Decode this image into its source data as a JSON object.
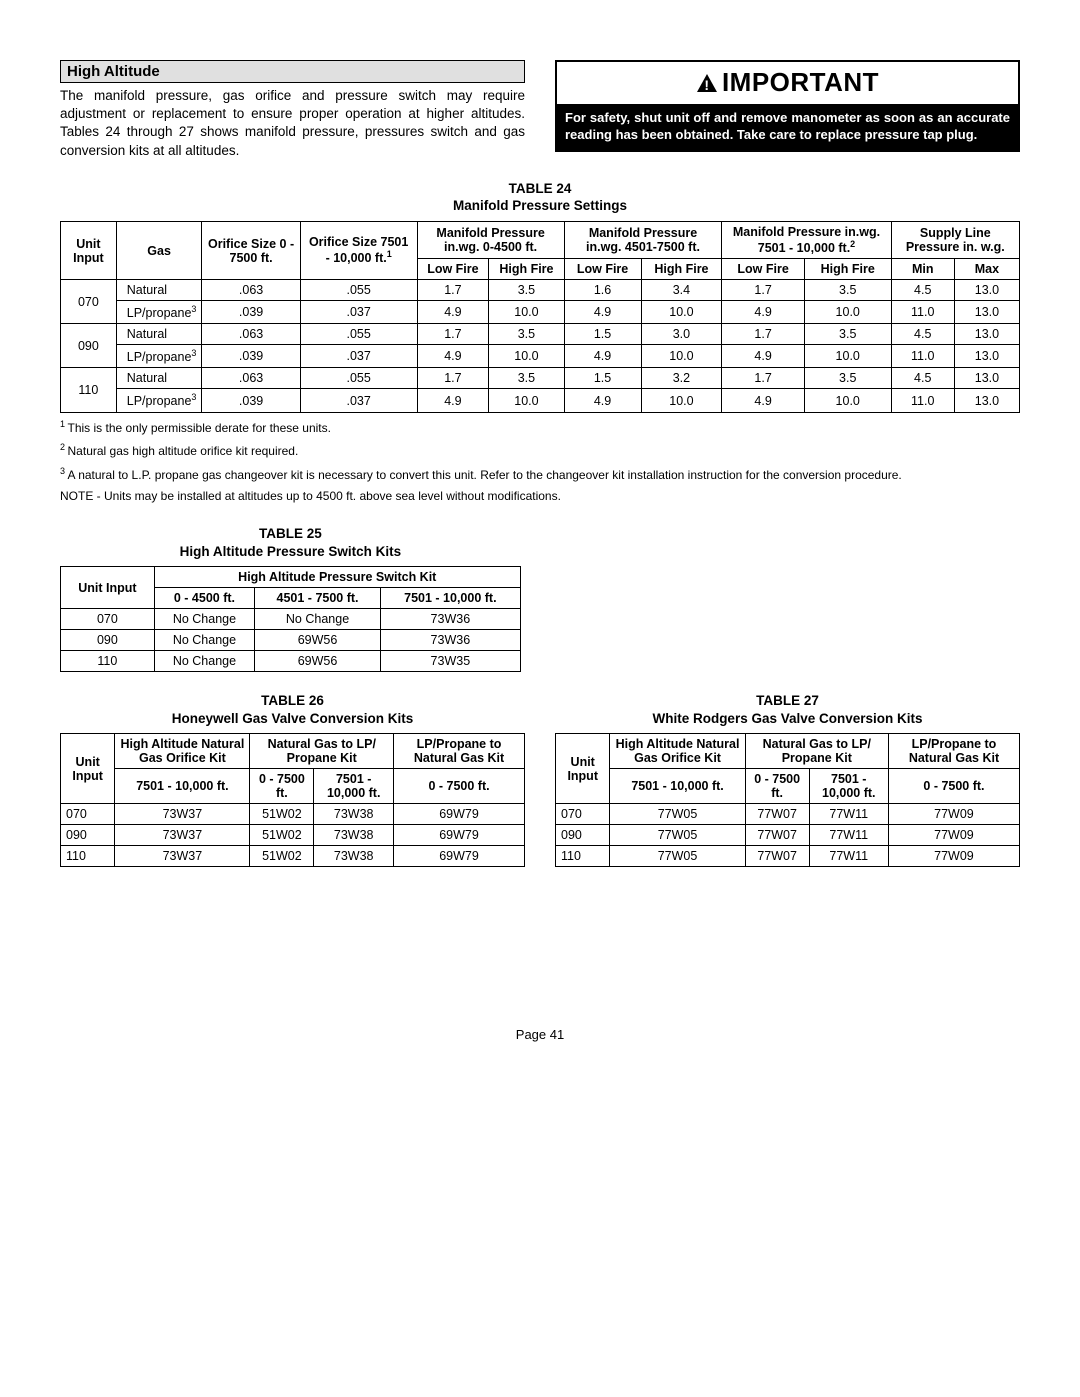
{
  "section": {
    "title": "High Altitude",
    "body": "The manifold pressure, gas orifice and pressure switch may require adjustment or replacement to ensure proper operation at higher altitudes. Tables 24 through 27 shows manifold pressure, pressures switch and gas conversion kits at all altitudes."
  },
  "important": {
    "header": "IMPORTANT",
    "body": "For safety, shut unit off and remove manometer as soon as an accurate reading has been obtained. Take care to replace pressure tap plug."
  },
  "table24": {
    "title_line1": "TABLE 24",
    "title_line2": "Manifold Pressure Settings",
    "headers": {
      "unit_input": "Unit Input",
      "gas": "Gas",
      "orifice1": "Orifice Size 0 - 7500 ft.",
      "orifice2_l1": "Orifice Size 7501 - 10,000 ft.",
      "orifice2_sup": "1",
      "mp1": "Manifold Pressure in.wg. 0-4500 ft.",
      "mp2": "Manifold Pressure in.wg. 4501-7500 ft.",
      "mp3_l": "Manifold Pressure in.wg. 7501 - 10,000 ft.",
      "mp3_sup": "2",
      "supply": "Supply Line Pressure in. w.g.",
      "low": "Low Fire",
      "high": "High Fire",
      "min": "Min",
      "max": "Max"
    },
    "rows": [
      {
        "unit": "070",
        "gas": "Natural",
        "o1": ".063",
        "o2": ".055",
        "lf1": "1.7",
        "hf1": "3.5",
        "lf2": "1.6",
        "hf2": "3.4",
        "lf3": "1.7",
        "hf3": "3.5",
        "min": "4.5",
        "max": "13.0"
      },
      {
        "gas": "LP/propane",
        "sup": "3",
        "o1": ".039",
        "o2": ".037",
        "lf1": "4.9",
        "hf1": "10.0",
        "lf2": "4.9",
        "hf2": "10.0",
        "lf3": "4.9",
        "hf3": "10.0",
        "min": "11.0",
        "max": "13.0"
      },
      {
        "unit": "090",
        "gas": "Natural",
        "o1": ".063",
        "o2": ".055",
        "lf1": "1.7",
        "hf1": "3.5",
        "lf2": "1.5",
        "hf2": "3.0",
        "lf3": "1.7",
        "hf3": "3.5",
        "min": "4.5",
        "max": "13.0"
      },
      {
        "gas": "LP/propane",
        "sup": "3",
        "o1": ".039",
        "o2": ".037",
        "lf1": "4.9",
        "hf1": "10.0",
        "lf2": "4.9",
        "hf2": "10.0",
        "lf3": "4.9",
        "hf3": "10.0",
        "min": "11.0",
        "max": "13.0"
      },
      {
        "unit": "110",
        "gas": "Natural",
        "o1": ".063",
        "o2": ".055",
        "lf1": "1.7",
        "hf1": "3.5",
        "lf2": "1.5",
        "hf2": "3.2",
        "lf3": "1.7",
        "hf3": "3.5",
        "min": "4.5",
        "max": "13.0"
      },
      {
        "gas": "LP/propane",
        "sup": "3",
        "o1": ".039",
        "o2": ".037",
        "lf1": "4.9",
        "hf1": "10.0",
        "lf2": "4.9",
        "hf2": "10.0",
        "lf3": "4.9",
        "hf3": "10.0",
        "min": "11.0",
        "max": "13.0"
      }
    ]
  },
  "footnotes": {
    "f1": "This is the only permissible derate for these units.",
    "f2": "Natural gas high altitude orifice kit required.",
    "f3": "A natural to L.P. propane gas changeover kit is necessary to convert this unit. Refer to the changeover kit installation instruction for the conversion procedure.",
    "note": "NOTE - Units may be installed at altitudes up to 4500 ft. above sea level without modifications."
  },
  "table25": {
    "title_line1": "TABLE 25",
    "title_line2": "High Altitude Pressure Switch Kits",
    "headers": {
      "unit_input": "Unit Input",
      "main": "High Altitude Pressure Switch Kit",
      "c1": "0 - 4500 ft.",
      "c2": "4501 - 7500 ft.",
      "c3": "7501 - 10,000 ft."
    },
    "rows": [
      {
        "unit": "070",
        "a": "No Change",
        "b": "No Change",
        "c": "73W36"
      },
      {
        "unit": "090",
        "a": "No Change",
        "b": "69W56",
        "c": "73W36"
      },
      {
        "unit": "110",
        "a": "No Change",
        "b": "69W56",
        "c": "73W35"
      }
    ]
  },
  "table26": {
    "title_line1": "TABLE 26",
    "title_line2": "Honeywell Gas Valve Conversion Kits",
    "headers": {
      "unit_input": "Unit Input",
      "c1": "High Altitude Natural Gas Orifice Kit",
      "c2": "Natural Gas to LP/ Propane Kit",
      "c3": "LP/Propane to Natural Gas Kit",
      "s1": "7501 - 10,000 ft.",
      "s2": "0 - 7500 ft.",
      "s3": "7501 - 10,000 ft.",
      "s4": "0 - 7500 ft."
    },
    "rows": [
      {
        "unit": "070",
        "a": "73W37",
        "b": "51W02",
        "c": "73W38",
        "d": "69W79"
      },
      {
        "unit": "090",
        "a": "73W37",
        "b": "51W02",
        "c": "73W38",
        "d": "69W79"
      },
      {
        "unit": "110",
        "a": "73W37",
        "b": "51W02",
        "c": "73W38",
        "d": "69W79"
      }
    ]
  },
  "table27": {
    "title_line1": "TABLE 27",
    "title_line2": "White Rodgers Gas Valve Conversion Kits",
    "headers": {
      "unit_input": "Unit Input",
      "c1": "High Altitude Natural Gas Orifice Kit",
      "c2": "Natural Gas to LP/ Propane Kit",
      "c3": "LP/Propane to Natural Gas Kit",
      "s1": "7501 - 10,000 ft.",
      "s2": "0 - 7500 ft.",
      "s3": "7501 - 10,000 ft.",
      "s4": "0 - 7500 ft."
    },
    "rows": [
      {
        "unit": "070",
        "a": "77W05",
        "b": "77W07",
        "c": "77W11",
        "d": "77W09"
      },
      {
        "unit": "090",
        "a": "77W05",
        "b": "77W07",
        "c": "77W11",
        "d": "77W09"
      },
      {
        "unit": "110",
        "a": "77W05",
        "b": "77W07",
        "c": "77W11",
        "d": "77W09"
      }
    ]
  },
  "page": "Page 41"
}
